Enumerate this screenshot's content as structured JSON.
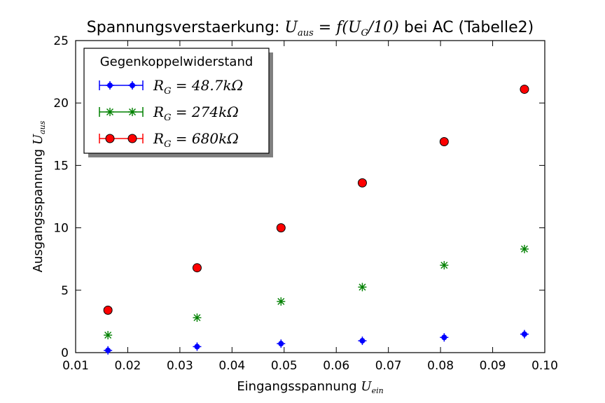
{
  "chart_data": {
    "type": "scatter",
    "title": {
      "prefix": "Spannungsverstaerkung: ",
      "math": "U",
      "math_sub": "aus",
      "math_rest": " = f(U",
      "math_sub2": "G",
      "math_rest2": "/10)",
      "suffix": " bei AC (Tabelle2)"
    },
    "xlabel": {
      "text": "Eingangsspannung ",
      "math": "U",
      "math_sub": "ein"
    },
    "ylabel": {
      "text": "Ausgangsspannung ",
      "math": "U",
      "math_sub": "aus"
    },
    "xlim": [
      0.01,
      0.1
    ],
    "ylim": [
      0,
      25
    ],
    "xticks": [
      "0.01",
      "0.02",
      "0.03",
      "0.04",
      "0.05",
      "0.06",
      "0.07",
      "0.08",
      "0.09",
      "0.10"
    ],
    "yticks": [
      "0",
      "5",
      "10",
      "15",
      "20",
      "25"
    ],
    "grid": false,
    "legend": {
      "title": "Gegenkoppelwiderstand",
      "placement": "top-left"
    },
    "x": [
      0.0162,
      0.0333,
      0.0494,
      0.065,
      0.0807,
      0.0961
    ],
    "series": [
      {
        "name": "R_G = 48.7kΩ",
        "label_math": "R",
        "label_sub": "G",
        "label_rest": " = 48.7kΩ",
        "marker": "dot",
        "color": "#0000ff",
        "values": [
          0.18,
          0.48,
          0.72,
          0.95,
          1.22,
          1.48
        ]
      },
      {
        "name": "R_G = 274kΩ",
        "label_math": "R",
        "label_sub": "G",
        "label_rest": " = 274kΩ",
        "marker": "star",
        "color": "#008000",
        "values": [
          1.4,
          2.8,
          4.1,
          5.25,
          7.0,
          8.3
        ]
      },
      {
        "name": "R_G = 680kΩ",
        "label_math": "R",
        "label_sub": "G",
        "label_rest": " = 680kΩ",
        "marker": "circle",
        "color": "#ff0000",
        "values": [
          3.4,
          6.8,
          10.0,
          13.6,
          16.9,
          21.1
        ]
      }
    ]
  }
}
